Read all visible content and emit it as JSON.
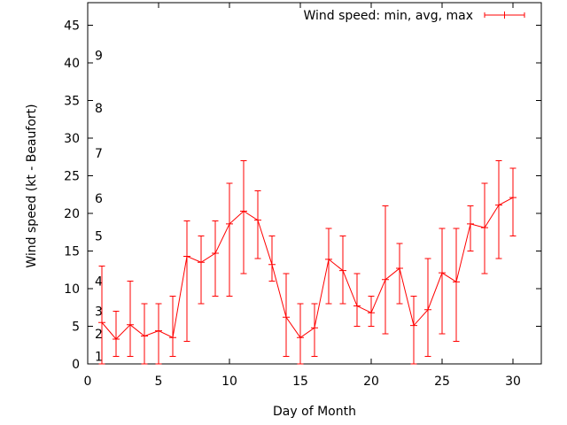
{
  "chart_data": {
    "type": "line",
    "title": "",
    "xlabel": "Day of Month",
    "ylabel": "Wind speed (kt - Beaufort)",
    "xlim": [
      0,
      32
    ],
    "ylim": [
      0,
      48
    ],
    "xticks": [
      0,
      5,
      10,
      15,
      20,
      25,
      30
    ],
    "yticks": [
      0,
      5,
      10,
      15,
      20,
      25,
      30,
      35,
      40,
      45
    ],
    "grid": false,
    "legend_position": "top-right",
    "series": [
      {
        "name": "Wind speed: min, avg, max",
        "color": "#ff0000",
        "marker": "plus",
        "error_bars": true,
        "x": [
          1,
          2,
          3,
          4,
          5,
          6,
          7,
          8,
          9,
          10,
          11,
          12,
          13,
          14,
          15,
          16,
          17,
          18,
          19,
          20,
          21,
          22,
          23,
          24,
          25,
          26,
          27,
          28,
          29,
          30
        ],
        "avg": [
          5.5,
          3.3,
          5.2,
          3.7,
          4.4,
          3.5,
          14.3,
          13.5,
          14.7,
          18.6,
          20.3,
          19.1,
          13.2,
          6.2,
          3.5,
          4.8,
          13.9,
          12.4,
          7.7,
          6.8,
          11.2,
          12.7,
          5.1,
          7.2,
          12.1,
          10.9,
          18.6,
          18.1,
          21.1,
          22.1
        ],
        "min": [
          0,
          1,
          1,
          0,
          0,
          1,
          3,
          8,
          9,
          9,
          12,
          14,
          11,
          1,
          0,
          1,
          8,
          8,
          5,
          5,
          4,
          8,
          0,
          1,
          4,
          3,
          15,
          12,
          14,
          17
        ],
        "max": [
          13,
          7,
          11,
          8,
          8,
          9,
          19,
          17,
          19,
          24,
          27,
          23,
          17,
          12,
          8,
          8,
          18,
          17,
          12,
          9,
          21,
          16,
          9,
          14,
          18,
          18,
          21,
          24,
          27,
          26
        ]
      }
    ],
    "annotations": [
      {
        "text": "1",
        "y": 1
      },
      {
        "text": "2",
        "y": 4
      },
      {
        "text": "3",
        "y": 7
      },
      {
        "text": "4",
        "y": 11
      },
      {
        "text": "5",
        "y": 17
      },
      {
        "text": "6",
        "y": 22
      },
      {
        "text": "7",
        "y": 28
      },
      {
        "text": "8",
        "y": 34
      },
      {
        "text": "9",
        "y": 41
      }
    ]
  }
}
